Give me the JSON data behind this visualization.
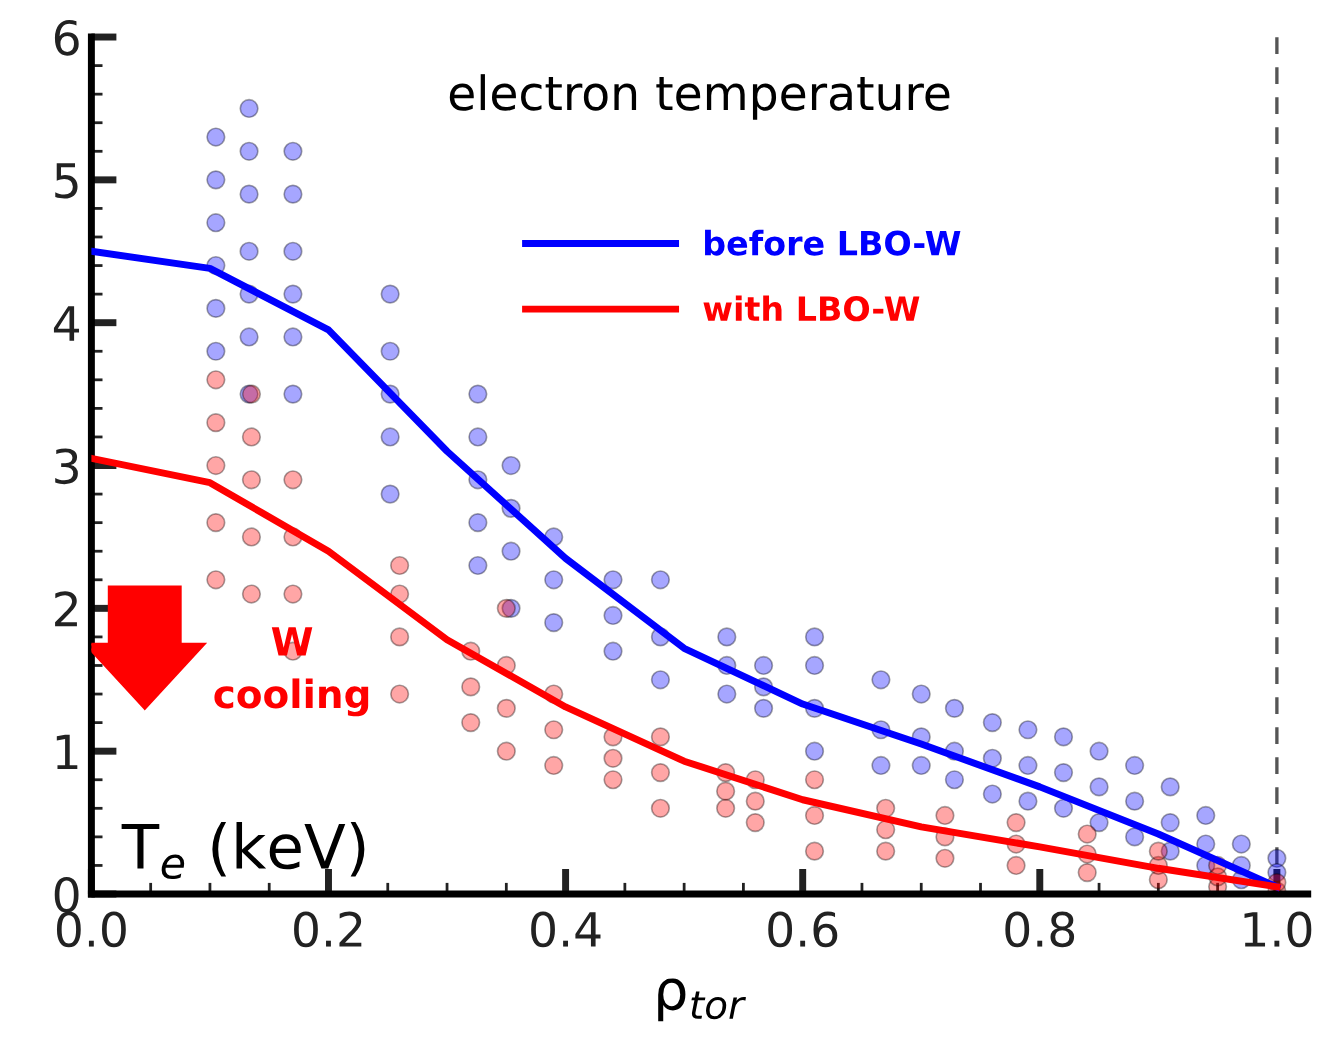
{
  "chart_data": {
    "type": "scatter",
    "title": "electron temperature",
    "xlabel": "ρ$_{tor}$",
    "ylabel": "T$_{e}$ (keV)",
    "annotations": [
      "W\ncooling"
    ],
    "xlim": [
      0,
      1.026
    ],
    "ylim": [
      0,
      6
    ],
    "xticks": [
      {
        "value": 0,
        "label": "0.0"
      },
      0.2,
      0.4,
      0.6,
      0.8,
      {
        "value": 1,
        "label": "1.0"
      }
    ],
    "yticks": [
      0,
      1,
      2,
      3,
      4,
      5,
      6
    ],
    "grid": false,
    "legend": "top right",
    "ref_lines": [
      {
        "axis": "x",
        "value": 1.0,
        "color": "#555555",
        "line_style": "dashed"
      }
    ],
    "series": [
      {
        "color": "#0000ff",
        "marker": "circle",
        "x": [
          0.105,
          0.105,
          0.105,
          0.105,
          0.105,
          0.105,
          0.133,
          0.133,
          0.133,
          0.133,
          0.133,
          0.133,
          0.133,
          0.17,
          0.17,
          0.17,
          0.17,
          0.17,
          0.17,
          0.252,
          0.252,
          0.252,
          0.252,
          0.252,
          0.326,
          0.326,
          0.326,
          0.326,
          0.326,
          0.354,
          0.354,
          0.354,
          0.354,
          0.39,
          0.39,
          0.39,
          0.44,
          0.44,
          0.44,
          0.48,
          0.48,
          0.48,
          0.536,
          0.536,
          0.536,
          0.567,
          0.567,
          0.567,
          0.61,
          0.61,
          0.61,
          0.61,
          0.666,
          0.666,
          0.666,
          0.7,
          0.7,
          0.7,
          0.728,
          0.728,
          0.728,
          0.76,
          0.76,
          0.76,
          0.79,
          0.79,
          0.79,
          0.82,
          0.82,
          0.82,
          0.85,
          0.85,
          0.85,
          0.88,
          0.88,
          0.88,
          0.91,
          0.91,
          0.91,
          0.94,
          0.94,
          0.94,
          0.97,
          0.97,
          0.97,
          1.0,
          1.0
        ],
        "values": [
          3.8,
          4.1,
          4.4,
          4.7,
          5.0,
          5.3,
          3.5,
          3.9,
          4.2,
          4.5,
          4.9,
          5.2,
          5.5,
          3.5,
          3.9,
          4.2,
          4.5,
          4.9,
          5.2,
          2.8,
          3.2,
          3.5,
          3.8,
          4.2,
          2.3,
          2.6,
          2.9,
          3.2,
          3.5,
          2.0,
          2.4,
          2.7,
          3.0,
          1.9,
          2.2,
          2.5,
          1.7,
          1.95,
          2.2,
          1.5,
          1.8,
          2.2,
          1.4,
          1.6,
          1.8,
          1.3,
          1.45,
          1.6,
          1.0,
          1.3,
          1.6,
          1.8,
          0.9,
          1.15,
          1.5,
          0.9,
          1.1,
          1.4,
          0.8,
          1.0,
          1.3,
          0.7,
          0.95,
          1.2,
          0.65,
          0.9,
          1.15,
          0.6,
          0.85,
          1.1,
          0.5,
          0.75,
          1.0,
          0.4,
          0.65,
          0.9,
          0.3,
          0.5,
          0.75,
          0.2,
          0.35,
          0.55,
          0.1,
          0.2,
          0.35,
          0.25,
          0.15
        ]
      },
      {
        "color": "#ff0000",
        "marker": "circle",
        "x": [
          0.105,
          0.105,
          0.105,
          0.105,
          0.105,
          0.135,
          0.135,
          0.135,
          0.135,
          0.135,
          0.17,
          0.17,
          0.17,
          0.17,
          0.26,
          0.26,
          0.26,
          0.26,
          0.32,
          0.32,
          0.32,
          0.35,
          0.35,
          0.35,
          0.35,
          0.39,
          0.39,
          0.39,
          0.44,
          0.44,
          0.44,
          0.48,
          0.48,
          0.48,
          0.535,
          0.535,
          0.535,
          0.56,
          0.56,
          0.56,
          0.61,
          0.61,
          0.61,
          0.67,
          0.67,
          0.67,
          0.72,
          0.72,
          0.72,
          0.78,
          0.78,
          0.78,
          0.84,
          0.84,
          0.84,
          0.9,
          0.9,
          0.9,
          0.95,
          0.95,
          0.95,
          1.0,
          1.0
        ],
        "values": [
          2.2,
          2.6,
          3.0,
          3.3,
          3.6,
          2.1,
          2.5,
          2.9,
          3.2,
          3.5,
          1.7,
          2.1,
          2.5,
          2.9,
          1.4,
          1.8,
          2.1,
          2.3,
          1.2,
          1.45,
          1.7,
          1.0,
          1.3,
          1.6,
          2.0,
          0.9,
          1.15,
          1.4,
          0.8,
          0.95,
          1.1,
          0.6,
          0.85,
          1.1,
          0.6,
          0.72,
          0.85,
          0.5,
          0.65,
          0.8,
          0.3,
          0.55,
          0.8,
          0.3,
          0.45,
          0.6,
          0.25,
          0.4,
          0.55,
          0.2,
          0.35,
          0.5,
          0.15,
          0.28,
          0.42,
          0.1,
          0.2,
          0.3,
          0.05,
          0.12,
          0.2,
          0.02,
          0.08
        ]
      },
      {
        "type": "line",
        "name": "before LBO-W",
        "color": "#0000ff",
        "marker": "none",
        "line_style": "solid",
        "x": [
          0,
          0.1,
          0.2,
          0.3,
          0.4,
          0.5,
          0.6,
          0.7,
          0.8,
          0.9,
          1.0
        ],
        "values": [
          4.5,
          4.38,
          3.95,
          3.1,
          2.35,
          1.72,
          1.33,
          1.05,
          0.75,
          0.42,
          0.05
        ]
      },
      {
        "type": "line",
        "name": "with LBO-W",
        "color": "#ff0000",
        "marker": "none",
        "line_style": "solid",
        "x": [
          0,
          0.1,
          0.2,
          0.3,
          0.4,
          0.5,
          0.6,
          0.7,
          0.8,
          0.9,
          1.0
        ],
        "values": [
          3.05,
          2.88,
          2.4,
          1.78,
          1.31,
          0.93,
          0.66,
          0.47,
          0.33,
          0.18,
          0.05
        ]
      }
    ]
  }
}
